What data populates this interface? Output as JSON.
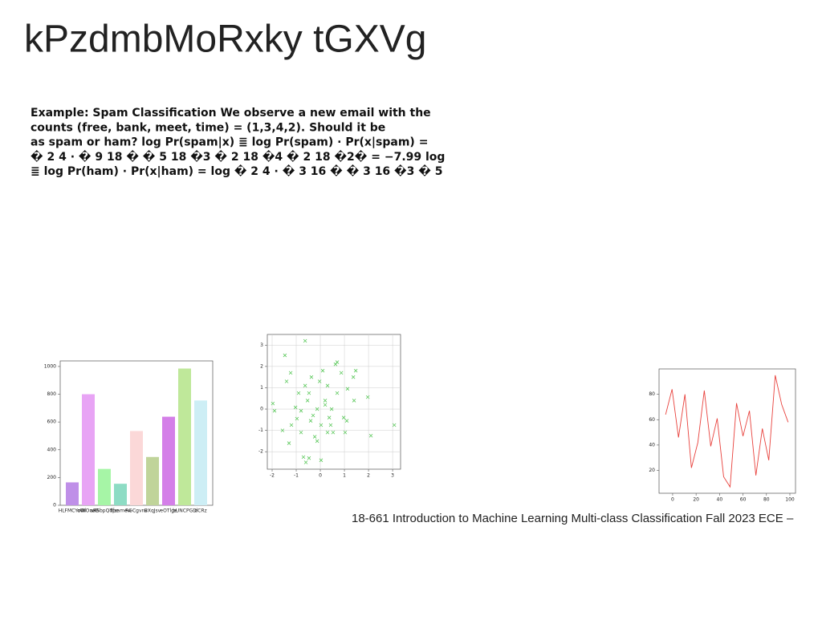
{
  "title": "kPzdmbMoRxky tGXVg",
  "paragraph": [
    "Example: Spam Classification We observe a new email with the",
    "counts (free, bank, meet, time) = (1,3,4,2). Should it be",
    "as spam or ham? log Pr(spam|x) ≣ log Pr(spam) · Pr(x|spam) =",
    "� 2 4 · � 9 18 � � 5 18 �3 � 2 18 �4 � 2 18 �2� = −7.99 log",
    "≣ log Pr(ham) · Pr(x|ham) = log � 2 4 · � 3 16 � � 3 16 �3 � 5"
  ],
  "footer": "18-661 Introduction to Machine Learning Multi-class Classification Fall 2023 ECE –",
  "chart_data": [
    {
      "type": "bar",
      "categories": [
        "HLFMCYoWi",
        "oWOnaB",
        "aRSbpQdpe",
        "Tfsamew",
        "RGCgvnv",
        "BXqJsv",
        "eOTlge",
        "bUNCPGD",
        "dCRz"
      ],
      "values": [
        165,
        800,
        262,
        155,
        535,
        348,
        638,
        985,
        755
      ],
      "colors": [
        "#bf8fe8",
        "#e8a4f5",
        "#a6f5a6",
        "#8ddcc4",
        "#fbd8d8",
        "#c0d49a",
        "#d47fe8",
        "#bfe89a",
        "#cdeef5"
      ],
      "ylim": [
        0,
        1040
      ],
      "yticks": [
        0,
        200,
        400,
        600,
        800,
        1000
      ]
    },
    {
      "type": "scatter",
      "color": "#5cc85c",
      "grid": true,
      "x": [
        -1.47,
        -0.63,
        -1.23,
        -1.4,
        -1.97,
        -1.9,
        -1.57,
        -1.3,
        -0.9,
        -1.03,
        -0.97,
        -0.8,
        -0.7,
        -0.6,
        -0.47,
        0.03,
        -0.63,
        -0.47,
        -0.53,
        -0.23,
        -0.13,
        -0.03,
        0.2,
        0.3,
        0.37,
        0.43,
        0.53,
        0.63,
        0.7,
        0.87,
        0.7,
        0.97,
        1.1,
        1.13,
        1.37,
        1.47,
        1.4,
        1.97,
        2.1,
        3.07,
        0.1,
        -0.13,
        -0.3,
        0.03,
        0.2,
        0.47,
        0.3,
        -0.4,
        -0.8,
        -1.2,
        -0.37,
        1.03
      ],
      "values": [
        2.52,
        3.2,
        1.7,
        1.3,
        0.26,
        -0.08,
        -1.0,
        -1.6,
        0.75,
        0.08,
        -0.45,
        -1.1,
        -2.25,
        -2.5,
        -2.3,
        -2.4,
        1.1,
        0.75,
        0.4,
        -1.3,
        -1.5,
        1.3,
        0.4,
        1.1,
        -0.4,
        -0.75,
        -1.1,
        2.1,
        2.2,
        1.7,
        0.75,
        -0.4,
        -0.55,
        0.95,
        1.5,
        1.8,
        0.4,
        0.56,
        -1.25,
        -0.75,
        1.8,
        0,
        -0.3,
        -0.75,
        0.2,
        0,
        -1.1,
        -0.55,
        -0.08,
        -0.75,
        1.5,
        -1.1
      ],
      "xlim": [
        -2.2,
        3.33
      ],
      "xticks": [
        -2,
        -1,
        0,
        1,
        2,
        3
      ],
      "ylim": [
        -2.82,
        3.5
      ],
      "yticks": [
        -2,
        -1,
        0,
        1,
        2,
        3
      ]
    },
    {
      "type": "line",
      "color": "#e8413c",
      "x": [
        -6,
        -0.5,
        5,
        10.5,
        16,
        21.5,
        27,
        32.5,
        38,
        43.5,
        49,
        54.5,
        60,
        65.5,
        71,
        76.5,
        82,
        87.5,
        93,
        98.5
      ],
      "values": [
        64,
        84,
        46,
        80,
        22,
        42,
        83,
        39,
        61,
        15,
        7,
        73,
        47,
        67,
        16,
        53,
        28,
        95,
        72,
        58
      ],
      "xlim": [
        -11.6,
        104.8
      ],
      "xticks": [
        0,
        20,
        40,
        60,
        80,
        100
      ],
      "ylim": [
        2,
        100
      ],
      "yticks": [
        20,
        40,
        60,
        80
      ]
    }
  ]
}
